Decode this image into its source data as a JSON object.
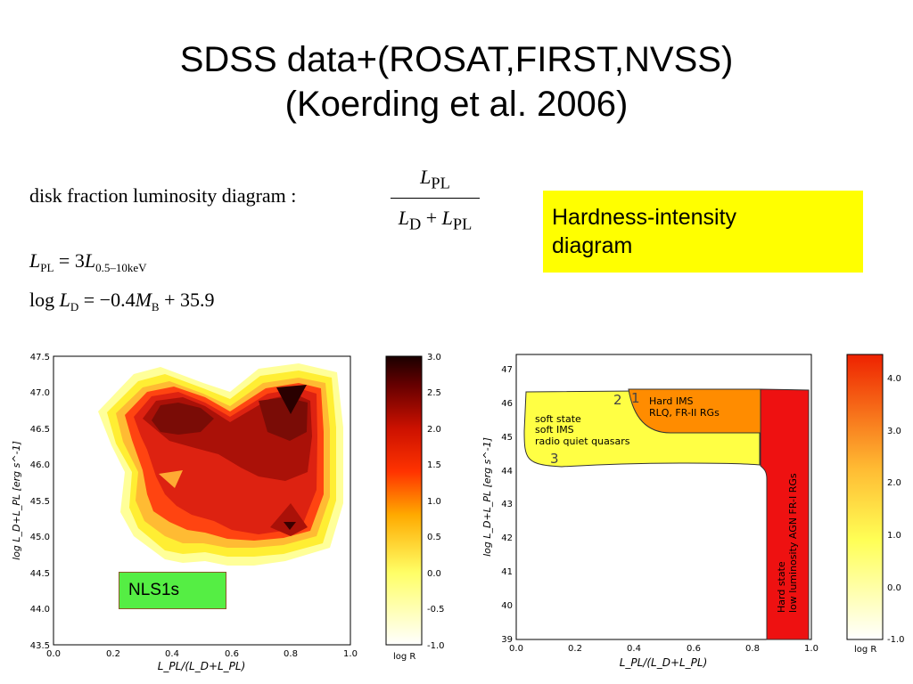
{
  "title_line1": "SDSS data+(ROSAT,FIRST,NVSS)",
  "title_line2": "(Koerding et al. 2006)",
  "equations": {
    "eq1_label": "disk fraction luminosity diagram :",
    "eq1_num": "L",
    "eq1_num_sub": "PL",
    "eq1_den_a": "L",
    "eq1_den_a_sub": "D",
    "eq1_den_plus": " + ",
    "eq1_den_b": "L",
    "eq1_den_b_sub": "PL",
    "eq2_lhs": "L",
    "eq2_lhs_sub": "PL",
    "eq2_mid": " = 3",
    "eq2_rhs": "L",
    "eq2_rhs_sub": "0.5–10keV",
    "eq3_log": "log ",
    "eq3_L": "L",
    "eq3_L_sub": "D",
    "eq3_mid": " = −0.4",
    "eq3_M": "M",
    "eq3_M_sub": "B",
    "eq3_end": " + 35.9"
  },
  "callout": {
    "line1": "Hardness-intensity",
    "line2": "diagram"
  },
  "nls_label": "NLS1s",
  "chart_data": [
    {
      "type": "heatmap",
      "xlim": [
        0.0,
        1.0
      ],
      "ylim": [
        43.5,
        47.5
      ],
      "x_ticks": [
        "0.0",
        "0.2",
        "0.4",
        "0.6",
        "0.8",
        "1.0"
      ],
      "y_ticks": [
        "43.5",
        "44.0",
        "44.5",
        "45.0",
        "45.5",
        "46.0",
        "46.5",
        "47.0",
        "47.5"
      ],
      "xlabel": "L_PL/(L_D+L_PL)",
      "ylabel": "log L_D+L_PL [erg s^-1]",
      "colorbar": {
        "label": "log R",
        "range": [
          -1.0,
          3.0
        ],
        "ticks": [
          "3.0",
          "2.5",
          "2.0",
          "1.5",
          "1.0",
          "0.5",
          "0.0",
          "-0.5",
          "-1.0"
        ]
      }
    },
    {
      "type": "area",
      "xlim": [
        0.0,
        1.0
      ],
      "ylim": [
        39,
        47.5
      ],
      "x_ticks": [
        "0.0",
        "0.2",
        "0.4",
        "0.6",
        "0.8",
        "1.0"
      ],
      "y_ticks": [
        "39",
        "40",
        "41",
        "42",
        "43",
        "44",
        "45",
        "46",
        "47"
      ],
      "xlabel": "L_PL/(L_D+L_PL)",
      "ylabel": "log L_D+L_PL [erg s^-1]",
      "regions": [
        {
          "name": "soft state / soft IMS / radio quiet quasars",
          "lines": [
            "soft state",
            "soft IMS",
            "radio quiet quasars"
          ],
          "color": "#ffff44"
        },
        {
          "name": "Hard IMS / RLQ, FR-II RGs",
          "lines": [
            "Hard IMS",
            "RLQ, FR-II RGs"
          ],
          "color": "#ff8c00"
        },
        {
          "name": "Hard state / low luminosity AGN FR-I RGs",
          "lines": [
            "Hard state",
            "low luminosity AGN FR-I RGs"
          ],
          "color": "#ee1111"
        }
      ],
      "annotations": [
        "1",
        "2",
        "3"
      ],
      "colorbar": {
        "label": "log R",
        "range": [
          -1.0,
          4.5
        ],
        "ticks": [
          "4.0",
          "3.0",
          "2.0",
          "1.0",
          "0.0",
          "-1.0"
        ]
      }
    }
  ]
}
